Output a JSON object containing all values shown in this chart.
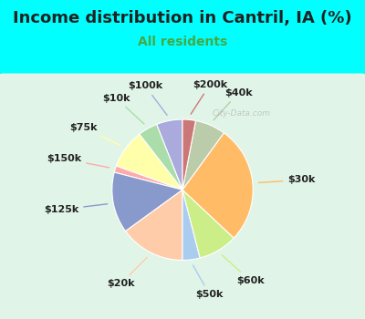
{
  "title": "Income distribution in Cantril, IA (%)",
  "subtitle": "All residents",
  "background_color": "#00FFFF",
  "chart_bg_color": "#d8f0e0",
  "labels": [
    "$100k",
    "$10k",
    "$75k",
    "$150k",
    "$125k",
    "$20k",
    "$50k",
    "$60k",
    "$30k",
    "$40k",
    "$200k"
  ],
  "values": [
    6.0,
    4.5,
    9.0,
    1.5,
    14.0,
    15.0,
    4.0,
    9.0,
    27.0,
    7.0,
    3.0
  ],
  "colors": [
    "#aaaadd",
    "#aaddaa",
    "#ffffaa",
    "#ffaaaa",
    "#8899cc",
    "#ffccaa",
    "#aaccee",
    "#ccee88",
    "#ffbb66",
    "#bbccaa",
    "#cc7777"
  ],
  "startangle": 90,
  "title_fontsize": 13,
  "subtitle_fontsize": 10,
  "label_fontsize": 8,
  "watermark": "City-Data.com"
}
